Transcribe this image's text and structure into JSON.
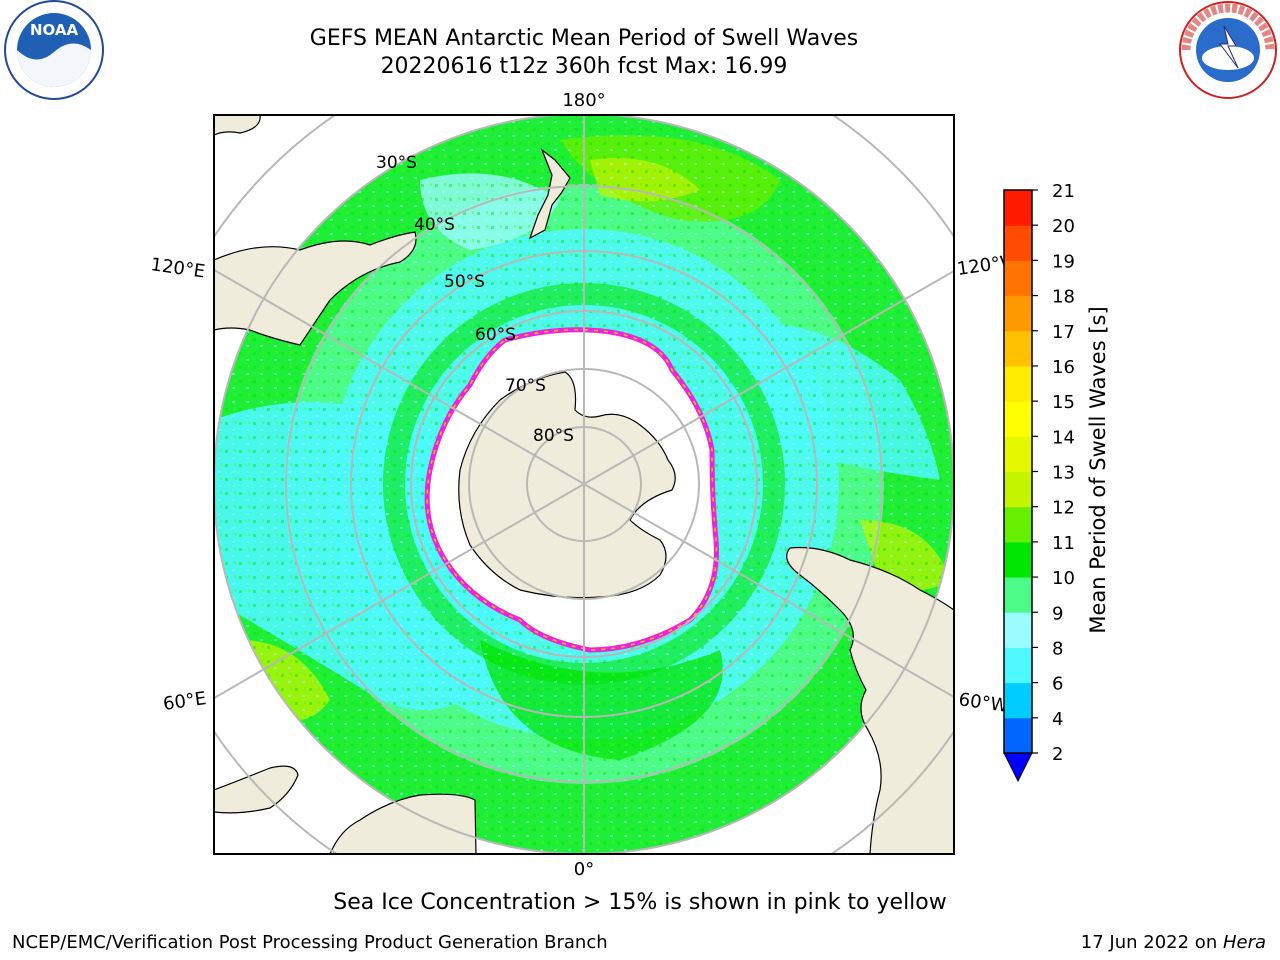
{
  "header": {
    "title_line1": "GEFS MEAN Antarctic Mean Period of Swell Waves",
    "title_line2": "20220616 t12z 360h fcst   Max: 16.99"
  },
  "logos": {
    "noaa": {
      "text": "NOAA",
      "icon": "noaa-logo"
    },
    "nws": {
      "text": "NATIONAL WEATHER SERVICE",
      "icon": "nws-logo"
    }
  },
  "map": {
    "projection": "south-polar-stereographic",
    "longitude_labels": {
      "top": "180°",
      "bottom": "0°",
      "upper_left": "120°E",
      "upper_right": "120°W",
      "lower_left": "60°E",
      "lower_right": "60°W"
    },
    "latitude_labels": [
      "30°S",
      "40°S",
      "50°S",
      "60°S",
      "70°S",
      "80°S"
    ],
    "colors": {
      "land": "#efecdc",
      "sea_ice_region": "#ffffff",
      "grid": "#b8b8b8",
      "coast": "#000000"
    }
  },
  "colorbar": {
    "label": "Mean Period of Swell Waves [s]",
    "ticks": [
      "2",
      "4",
      "6",
      "8",
      "9",
      "10",
      "11",
      "12",
      "13",
      "14",
      "15",
      "16",
      "17",
      "18",
      "19",
      "20",
      "21"
    ],
    "colors": [
      "#0066ff",
      "#00ccff",
      "#4df9ff",
      "#99fdff",
      "#4dfb88",
      "#00e600",
      "#66ef00",
      "#c4f400",
      "#e6f800",
      "#ffff00",
      "#ffec00",
      "#ffc100",
      "#ff9900",
      "#ff7300",
      "#ff4c00",
      "#ff1a00"
    ],
    "extend_color": "#0000ff"
  },
  "subtitle": "Sea Ice Concentration > 15% is shown in pink to yellow",
  "footer": {
    "left": "NCEP/EMC/Verification Post Processing Product Generation Branch",
    "right_prefix": "17 Jun 2022 on ",
    "right_machine": "Hera"
  }
}
